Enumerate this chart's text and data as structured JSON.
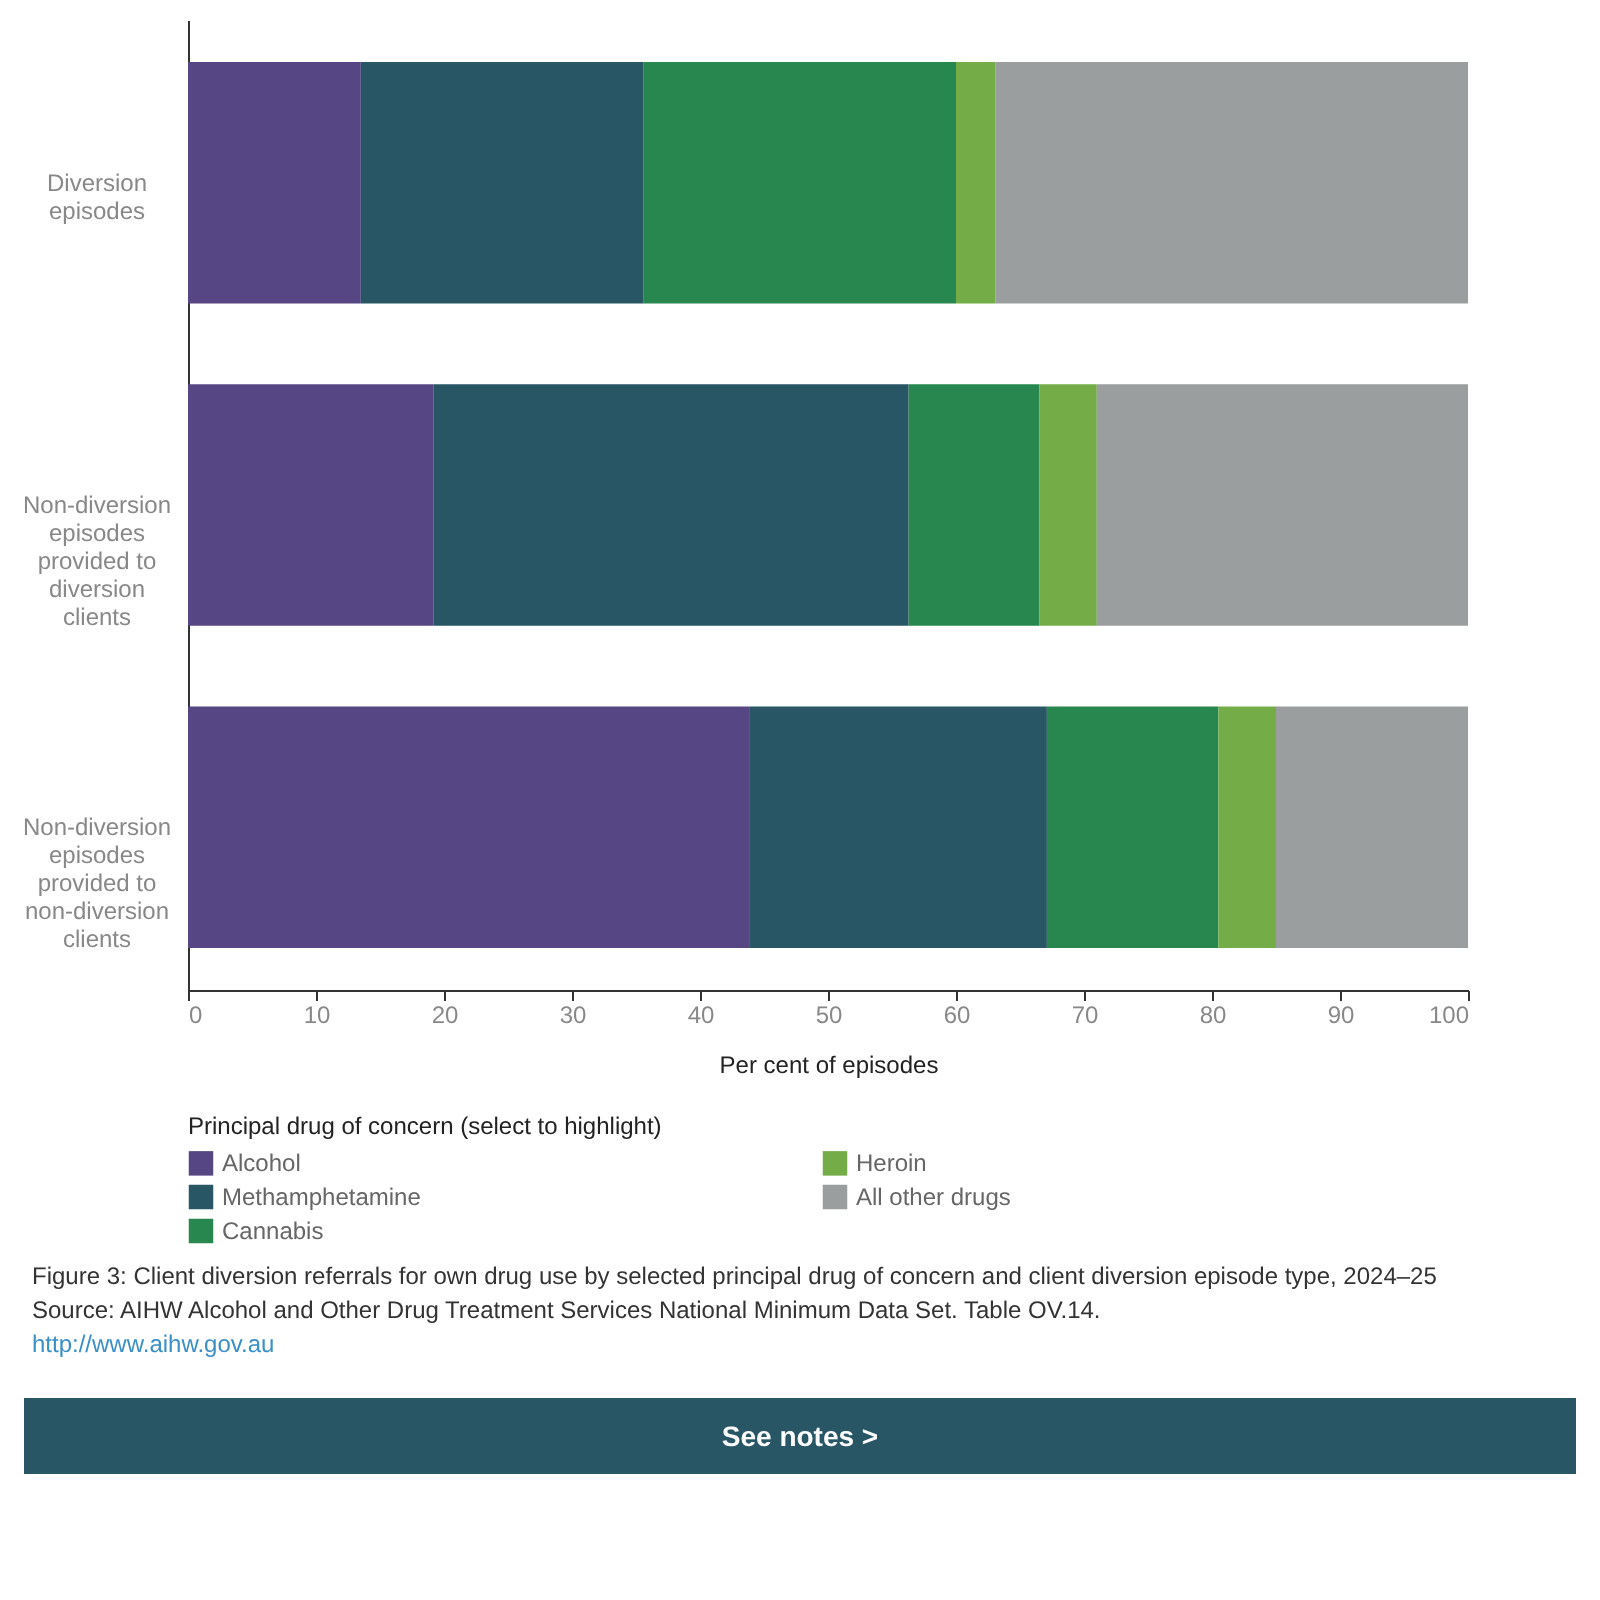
{
  "chart_data": {
    "type": "bar",
    "orientation": "horizontal",
    "stacked": true,
    "categories": [
      "Diversion episodes",
      "Non-diversion episodes provided to diversion clients",
      "Non-diversion episodes provided to non-diversion clients"
    ],
    "series": [
      {
        "name": "Alcohol",
        "color": "#574684",
        "values": [
          13.5,
          19.2,
          43.9
        ]
      },
      {
        "name": "Methamphetamine",
        "color": "#285665",
        "values": [
          22.1,
          37.1,
          23.2
        ]
      },
      {
        "name": "Cannabis",
        "color": "#27874e",
        "values": [
          24.4,
          10.2,
          13.4
        ]
      },
      {
        "name": "Heroin",
        "color": "#74ad48",
        "values": [
          3.1,
          4.5,
          4.5
        ]
      },
      {
        "name": "All other drugs",
        "color": "#9b9e9e",
        "values": [
          36.9,
          29.0,
          15.0
        ]
      }
    ],
    "xlim": [
      0,
      100
    ],
    "xticks": [
      0,
      10,
      20,
      30,
      40,
      50,
      60,
      70,
      80,
      90,
      100
    ],
    "xlabel": "Per cent of episodes",
    "legend_title": "Principal drug of concern (select to highlight)",
    "legend": "bottom",
    "grid": false,
    "annotations": [
      "Figure 3: Client diversion referrals for own drug use by selected principal drug of concern and client diversion episode type, 2024–25",
      "Source: AIHW Alcohol and Other Drug Treatment Services National Minimum Data Set. Table OV.14.",
      "http://www.aihw.gov.au",
      "See notes >"
    ]
  }
}
